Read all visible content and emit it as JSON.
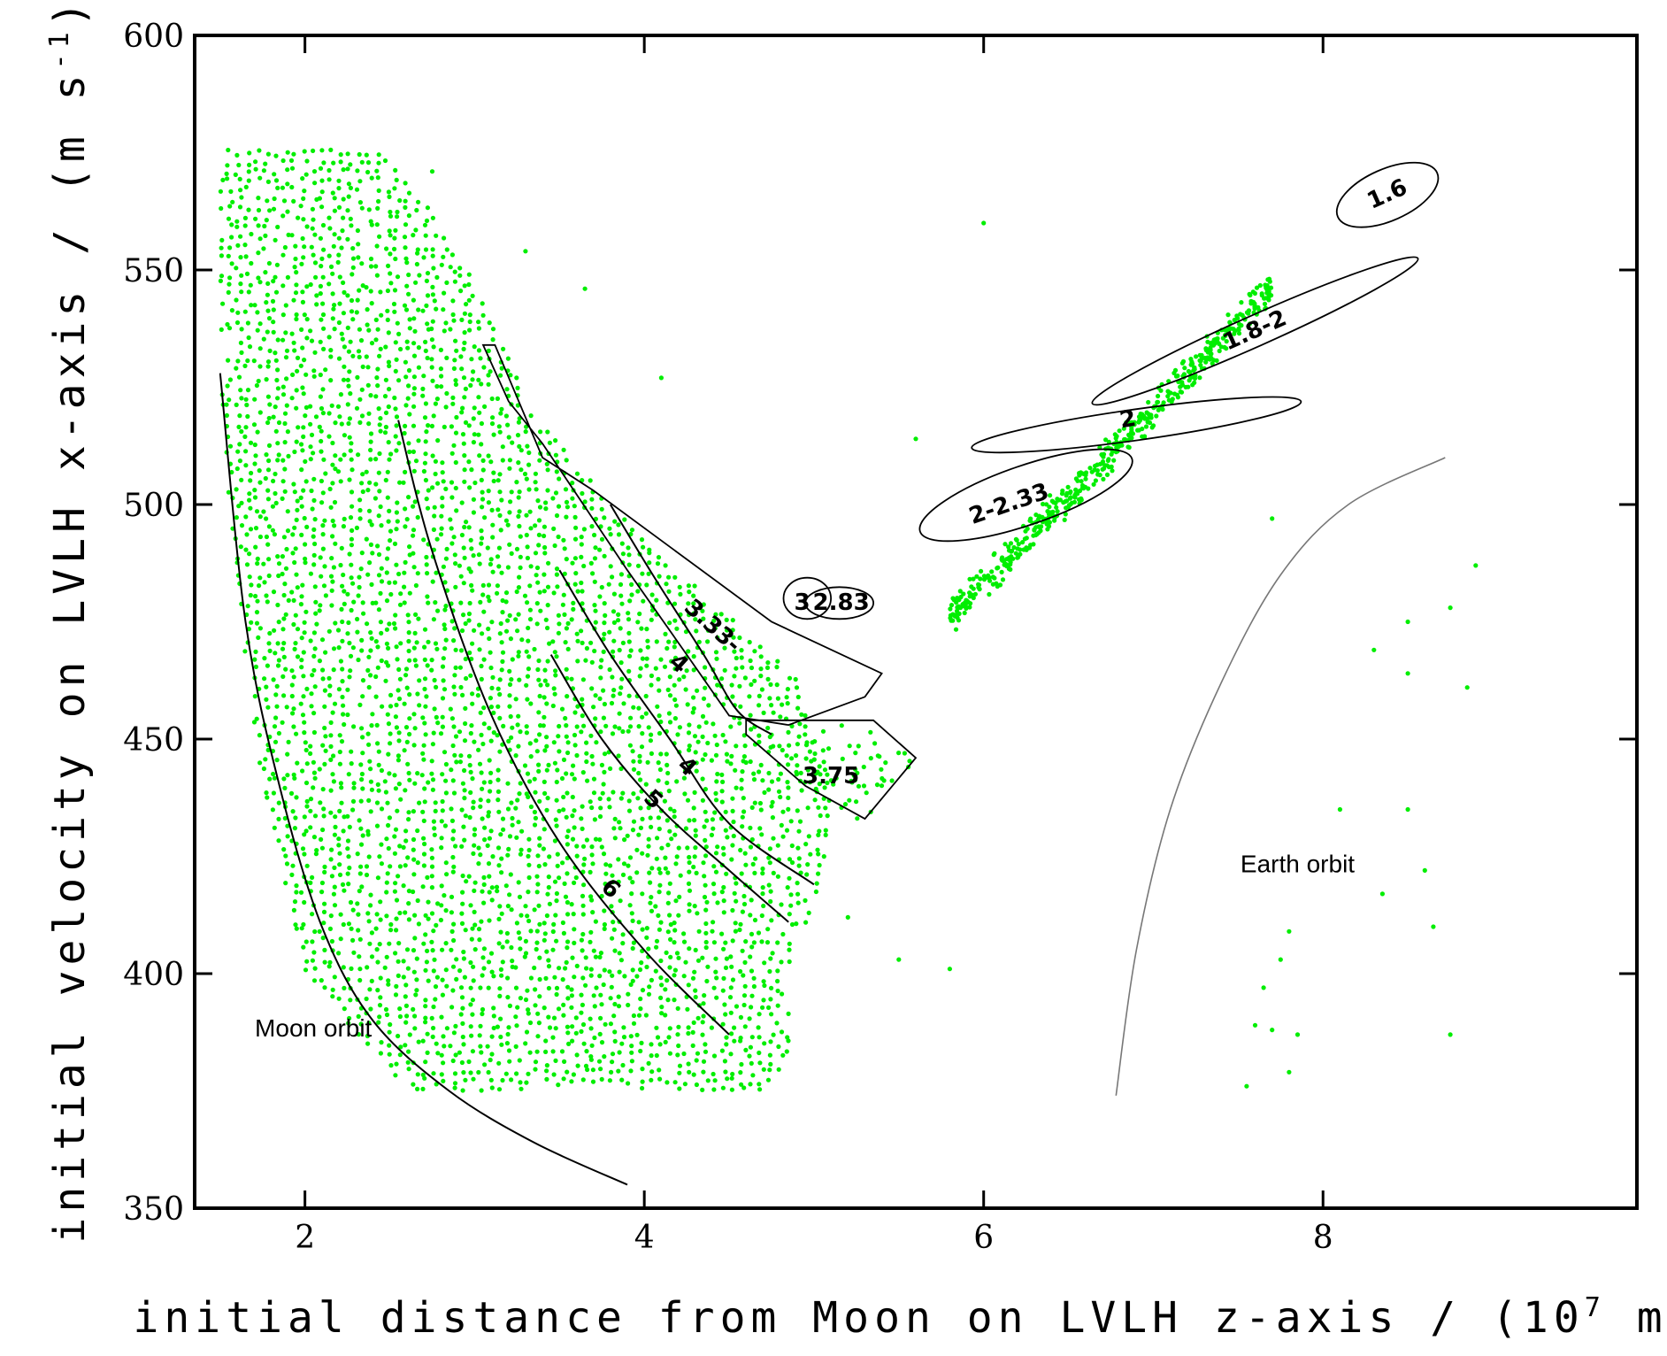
{
  "chart_data": {
    "type": "scatter",
    "title": "",
    "xlabel": "initial distance from Moon on LVLH z-axis / (10",
    "xlabel_sup": "7",
    "xlabel_tail": " m)",
    "ylabel": "initial velocity on LVLH x-axis / (m s",
    "ylabel_sup": "-1",
    "ylabel_tail": ")",
    "xlim": [
      1.35,
      9.85
    ],
    "ylim": [
      350,
      600
    ],
    "xticks": [
      {
        "value": 2,
        "label": "2"
      },
      {
        "value": 4,
        "label": "4"
      },
      {
        "value": 6,
        "label": "6"
      },
      {
        "value": 8,
        "label": "8"
      }
    ],
    "yticks": [
      {
        "value": 350,
        "label": "350"
      },
      {
        "value": 400,
        "label": "400"
      },
      {
        "value": 450,
        "label": "450"
      },
      {
        "value": 500,
        "label": "500"
      },
      {
        "value": 550,
        "label": "550"
      },
      {
        "value": 600,
        "label": "600"
      }
    ],
    "grid": false,
    "point_color": "#00ee00",
    "main_cluster": {
      "polygon": [
        [
          1.5,
          576
        ],
        [
          2.5,
          576
        ],
        [
          3.0,
          548
        ],
        [
          3.35,
          520
        ],
        [
          3.8,
          500
        ],
        [
          4.3,
          483
        ],
        [
          4.9,
          463
        ],
        [
          5.1,
          440
        ],
        [
          5.05,
          420
        ],
        [
          4.85,
          400
        ],
        [
          4.85,
          383
        ],
        [
          4.75,
          375
        ],
        [
          2.6,
          375
        ],
        [
          2.0,
          400
        ],
        [
          1.7,
          450
        ],
        [
          1.5,
          520
        ]
      ],
      "x_step": 0.055,
      "y_step": 2.0
    },
    "upper_cluster": {
      "center": [
        6.75,
        511
      ],
      "direction": [
        1.0,
        37
      ],
      "half_length": 0.95,
      "half_width": 4.5,
      "count": 520
    },
    "extra_cluster": {
      "polygon": [
        [
          4.6,
          453
        ],
        [
          5.4,
          453
        ],
        [
          5.6,
          445
        ],
        [
          5.3,
          432
        ],
        [
          4.95,
          440
        ],
        [
          4.6,
          450
        ]
      ],
      "count": 60
    },
    "stray_points": [
      [
        2.75,
        571
      ],
      [
        3.3,
        554
      ],
      [
        3.65,
        546
      ],
      [
        4.1,
        527
      ],
      [
        5.6,
        514
      ],
      [
        6.0,
        560
      ],
      [
        5.8,
        401
      ],
      [
        5.5,
        403
      ],
      [
        5.2,
        412
      ],
      [
        4.6,
        445
      ],
      [
        7.7,
        497
      ],
      [
        8.9,
        487
      ],
      [
        8.75,
        478
      ],
      [
        8.5,
        475
      ],
      [
        8.3,
        469
      ],
      [
        8.5,
        464
      ],
      [
        8.85,
        461
      ],
      [
        8.1,
        435
      ],
      [
        8.5,
        435
      ],
      [
        8.6,
        422
      ],
      [
        8.35,
        417
      ],
      [
        8.65,
        410
      ],
      [
        7.8,
        409
      ],
      [
        7.75,
        403
      ],
      [
        7.65,
        397
      ],
      [
        7.6,
        389
      ],
      [
        7.7,
        388
      ],
      [
        7.85,
        387
      ],
      [
        8.75,
        387
      ],
      [
        7.8,
        379
      ],
      [
        7.55,
        376
      ]
    ],
    "contours": [
      {
        "name": "moon-orbit-curve",
        "points": [
          [
            1.5,
            528
          ],
          [
            1.65,
            475
          ],
          [
            1.85,
            440
          ],
          [
            2.1,
            410
          ],
          [
            2.4,
            390
          ],
          [
            2.85,
            375
          ],
          [
            3.35,
            364
          ],
          [
            3.9,
            355
          ]
        ]
      },
      {
        "name": "contour-6",
        "points": [
          [
            2.55,
            518
          ],
          [
            2.75,
            490
          ],
          [
            3.1,
            455
          ],
          [
            3.5,
            428
          ],
          [
            4.0,
            405
          ],
          [
            4.5,
            387
          ]
        ]
      },
      {
        "name": "contour-5",
        "points": [
          [
            3.45,
            468
          ],
          [
            3.75,
            450
          ],
          [
            4.1,
            435
          ],
          [
            4.5,
            422
          ],
          [
            4.85,
            411
          ]
        ]
      },
      {
        "name": "contour-4",
        "points": [
          [
            3.5,
            486
          ],
          [
            3.8,
            468
          ],
          [
            4.15,
            450
          ],
          [
            4.5,
            432
          ],
          [
            5.0,
            419
          ]
        ]
      },
      {
        "name": "contour-3-33-4",
        "points": [
          [
            3.8,
            500
          ],
          [
            4.05,
            485
          ],
          [
            4.35,
            468
          ],
          [
            4.55,
            456
          ],
          [
            4.75,
            451
          ]
        ]
      },
      {
        "name": "earth-orbit-curve",
        "points": [
          [
            6.78,
            374
          ],
          [
            6.9,
            405
          ],
          [
            7.1,
            435
          ],
          [
            7.4,
            462
          ],
          [
            7.75,
            485
          ],
          [
            8.15,
            500
          ],
          [
            8.72,
            510
          ]
        ]
      }
    ],
    "regions": [
      {
        "name": "region-3-33-4-boundary",
        "type": "polygon",
        "points": [
          [
            3.05,
            534
          ],
          [
            3.12,
            534
          ],
          [
            3.4,
            510
          ],
          [
            3.7,
            503
          ],
          [
            4.75,
            475
          ],
          [
            5.4,
            464
          ],
          [
            5.3,
            459
          ],
          [
            4.85,
            453
          ],
          [
            4.5,
            455
          ],
          [
            4.25,
            468
          ],
          [
            3.9,
            486
          ],
          [
            3.4,
            513
          ],
          [
            3.2,
            522
          ]
        ]
      },
      {
        "name": "region-3-75-boundary",
        "type": "polygon",
        "points": [
          [
            4.6,
            454
          ],
          [
            5.35,
            454
          ],
          [
            5.6,
            446
          ],
          [
            5.3,
            433
          ],
          [
            4.95,
            440
          ],
          [
            4.6,
            451
          ]
        ]
      },
      {
        "name": "ellipse-1-6",
        "type": "ellipse",
        "cx": 8.38,
        "cy": 566,
        "rx": 0.32,
        "ry": 5.5,
        "rotate": -24
      },
      {
        "name": "ellipse-1-8-2",
        "type": "ellipse",
        "cx": 7.6,
        "cy": 537,
        "rx": 1.05,
        "ry": 3.3,
        "rotate": -24
      },
      {
        "name": "ellipse-2",
        "type": "ellipse",
        "cx": 6.9,
        "cy": 517,
        "rx": 0.98,
        "ry": 3.3,
        "rotate": -8
      },
      {
        "name": "ellipse-2-2-33",
        "type": "ellipse",
        "cx": 6.25,
        "cy": 502,
        "rx": 0.66,
        "ry": 6.3,
        "rotate": -19
      },
      {
        "name": "ellipse-3",
        "type": "ellipse",
        "cx": 4.96,
        "cy": 480,
        "rx": 0.14,
        "ry": 4.4,
        "rotate": 0
      },
      {
        "name": "ellipse-2-83",
        "type": "ellipse",
        "cx": 5.15,
        "cy": 479,
        "rx": 0.2,
        "ry": 3.4,
        "rotate": 0
      }
    ],
    "annotations": [
      {
        "text": "1.6",
        "x": 8.38,
        "y": 566,
        "rotate": -24,
        "style": "region"
      },
      {
        "text": "1.8-2",
        "x": 7.6,
        "y": 537,
        "rotate": -24,
        "style": "region"
      },
      {
        "text": "2",
        "x": 6.85,
        "y": 518,
        "rotate": -10,
        "style": "region"
      },
      {
        "text": "2-2.33",
        "x": 6.15,
        "y": 500,
        "rotate": -19,
        "style": "region"
      },
      {
        "text": "3",
        "x": 4.93,
        "y": 479,
        "rotate": 0,
        "style": "region"
      },
      {
        "text": "2.83",
        "x": 5.16,
        "y": 479,
        "rotate": 0,
        "style": "region"
      },
      {
        "text": "3.33-",
        "x": 4.4,
        "y": 474,
        "rotate": 42,
        "style": "region"
      },
      {
        "text": "4",
        "x": 4.2,
        "y": 466,
        "rotate": 42,
        "style": "region"
      },
      {
        "text": "3.75",
        "x": 5.1,
        "y": 442,
        "rotate": 0,
        "style": "region"
      },
      {
        "text": "4",
        "x": 4.25,
        "y": 444,
        "rotate": 42,
        "style": "region"
      },
      {
        "text": "5",
        "x": 4.05,
        "y": 437,
        "rotate": 42,
        "style": "region"
      },
      {
        "text": "6",
        "x": 3.8,
        "y": 418,
        "rotate": 42,
        "style": "region"
      },
      {
        "text": "Moon orbit",
        "x": 2.05,
        "y": 388,
        "rotate": 0,
        "style": "orbit"
      },
      {
        "text": "Earth orbit",
        "x": 7.85,
        "y": 423,
        "rotate": 0,
        "style": "orbit"
      }
    ]
  }
}
